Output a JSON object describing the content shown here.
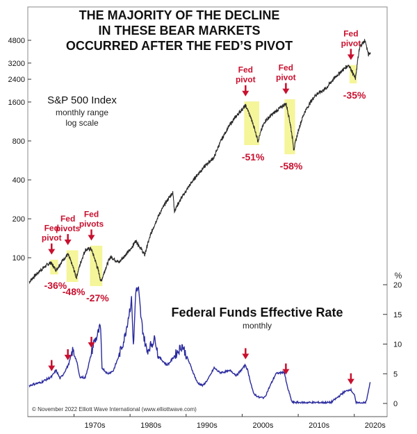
{
  "chart_data": [
    {
      "type": "line",
      "title": "THE MAJORITY OF THE DECLINE IN THESE BEAR MARKETS OCCURRED AFTER THE FED'S PIVOT",
      "title_lines": [
        "THE MAJORITY OF THE DECLINE",
        "IN THESE BEAR MARKETS",
        "OCCURRED AFTER THE FED’S PIVOT"
      ],
      "series_label": "S&P 500 Index",
      "subtitle_lines": [
        "monthly range",
        "log scale"
      ],
      "y_scale": "log",
      "ylim": [
        70,
        6000
      ],
      "y_ticks": [
        100,
        200,
        400,
        800,
        1600,
        2400,
        3200,
        4800
      ],
      "x_range": [
        1962.0,
        2024.0
      ],
      "line_color": "#2a2a2a",
      "highlight_color": "#f5f59a",
      "annotation_color": "#c8102e",
      "x": [
        1962.0,
        1964.0,
        1965.8,
        1966.8,
        1968.0,
        1968.9,
        1970.4,
        1972.0,
        1973.0,
        1974.8,
        1976.5,
        1978.0,
        1980.0,
        1981.0,
        1982.6,
        1984.0,
        1987.6,
        1987.9,
        1990.0,
        1995.0,
        1998.0,
        2000.6,
        2002.8,
        2004.0,
        2007.8,
        2009.2,
        2011.0,
        2013.0,
        2015.0,
        2017.0,
        2019.0,
        2020.2,
        2021.0,
        2021.9,
        2022.5,
        2022.9
      ],
      "y": [
        65,
        80,
        92,
        80,
        96,
        106,
        70,
        115,
        118,
        65,
        102,
        92,
        115,
        135,
        105,
        165,
        320,
        230,
        330,
        600,
        1100,
        1500,
        800,
        1130,
        1560,
        680,
        1300,
        1800,
        2050,
        2600,
        3100,
        2400,
        4300,
        4800,
        3700,
        3900
      ],
      "events": [
        {
          "label_lines": [
            "Fed",
            "pivot"
          ],
          "pivot_x": 1966.0,
          "start": 1966.0,
          "end": 1966.9,
          "decline": "-36%"
        },
        {
          "label_lines": [
            "Fed",
            "pivots"
          ],
          "pivot_x": 1968.9,
          "start": 1968.9,
          "end": 1970.5,
          "decline": "-48%"
        },
        {
          "label_lines": [
            "Fed",
            "pivots"
          ],
          "pivot_x": 1973.1,
          "start": 1973.1,
          "end": 1974.8,
          "decline": "-27%"
        },
        {
          "label_lines": [
            "Fed",
            "pivot"
          ],
          "pivot_x": 2000.6,
          "start": 2000.6,
          "end": 2002.8,
          "decline": "-51%"
        },
        {
          "label_lines": [
            "Fed",
            "pivot"
          ],
          "pivot_x": 2007.8,
          "start": 2007.8,
          "end": 2009.2,
          "decline": "-58%"
        },
        {
          "label_lines": [
            "Fed",
            "pivot"
          ],
          "pivot_x": 2019.4,
          "start": 2019.4,
          "end": 2020.2,
          "decline": "-35%"
        }
      ]
    },
    {
      "type": "line",
      "title": "Federal Funds Effective Rate",
      "subtitle": "monthly",
      "ylabel": "%",
      "ylim": [
        0,
        20
      ],
      "y_ticks": [
        0,
        5,
        10,
        15,
        20
      ],
      "x_range": [
        1962.0,
        2024.0
      ],
      "x_ticks": [
        "1970s",
        "1980s",
        "1990s",
        "2000s",
        "2010s",
        "2020s"
      ],
      "x_tick_positions": [
        1970,
        1980,
        1990,
        2000,
        2010,
        2020
      ],
      "line_color": "#2a2a9e",
      "x": [
        1962.0,
        1963.0,
        1964.0,
        1966.0,
        1966.8,
        1967.5,
        1968.0,
        1969.0,
        1969.8,
        1970.5,
        1971.0,
        1972.0,
        1973.0,
        1973.6,
        1974.0,
        1974.7,
        1975.0,
        1976.0,
        1977.0,
        1978.0,
        1979.0,
        1980.3,
        1980.6,
        1981.0,
        1981.5,
        1982.0,
        1982.5,
        1983.0,
        1984.5,
        1985.0,
        1986.5,
        1987.0,
        1989.3,
        1990.0,
        1992.0,
        1993.0,
        1994.0,
        1995.0,
        1996.0,
        1998.0,
        1999.0,
        2000.6,
        2001.0,
        2002.0,
        2003.0,
        2004.0,
        2005.0,
        2006.0,
        2007.5,
        2008.0,
        2008.9,
        2010.0,
        2015.8,
        2017.0,
        2018.0,
        2019.3,
        2020.0,
        2020.3,
        2022.0,
        2022.3,
        2022.9
      ],
      "y": [
        3.0,
        3.3,
        3.5,
        4.5,
        5.6,
        4.2,
        4.8,
        6.5,
        9.0,
        7.0,
        4.5,
        4.3,
        8.0,
        10.5,
        11.0,
        13.0,
        6.0,
        5.0,
        5.5,
        8.0,
        11.0,
        17.6,
        9.0,
        19.0,
        19.1,
        14.0,
        11.0,
        8.8,
        11.0,
        8.0,
        6.5,
        6.8,
        9.8,
        8.2,
        3.5,
        3.0,
        4.2,
        6.0,
        5.2,
        5.5,
        4.7,
        6.5,
        5.5,
        1.7,
        1.0,
        1.0,
        3.0,
        5.0,
        5.3,
        3.0,
        0.2,
        0.15,
        0.15,
        1.0,
        1.8,
        2.4,
        1.5,
        0.1,
        0.1,
        1.0,
        3.8
      ],
      "pivot_arrows": [
        1966.0,
        1968.9,
        1973.1,
        2000.6,
        2007.8,
        2019.4
      ]
    }
  ],
  "copyright": "© November 2022 Elliott Wave International (www.elliottwave.com)"
}
